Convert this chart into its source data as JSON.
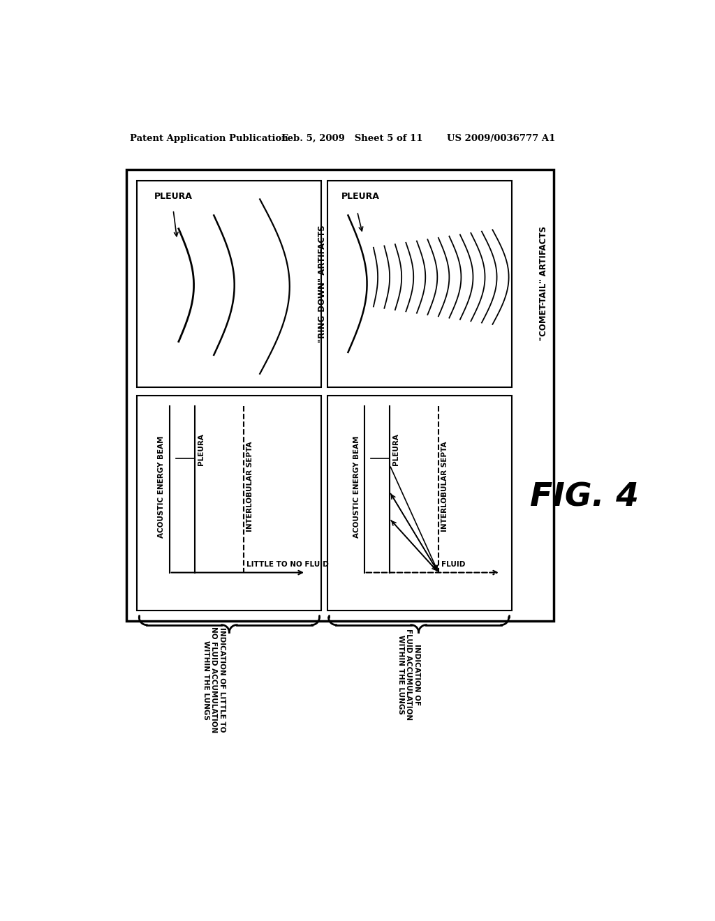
{
  "bg_color": "#ffffff",
  "header_left": "Patent Application Publication",
  "header_mid": "Feb. 5, 2009   Sheet 5 of 11",
  "header_right": "US 2009/0036777 A1",
  "fig_label": "FIG. 4",
  "bottom_left_text": "INDICATION OF LITTLE TO\nNO FLUID ACCUMULATION\nWITHIN THE LUNGS",
  "bottom_right_text": "INDICATION OF\nFLUID ACCUMULATION\nWITHIN THE LUNGS",
  "ring_down_label": "\"RING-DOWN\" ARTIFACTS",
  "comet_tail_label": "\"COMET-TAIL\" ARTIFACTS",
  "tl_pleura": "PLEURA",
  "tr_pleura": "PLEURA",
  "bl_label0": "ACOUSTIC ENERGY BEAM",
  "bl_label1": "PLEURA",
  "bl_label2": "INTERLOBULAR SEPTA",
  "bl_label3": "LITTLE TO NO FLUID",
  "br_label0": "ACOUSTIC ENERGY BEAM",
  "br_label1": "PLEURA",
  "br_label2": "INTERLOBULAR SEPTA",
  "br_label3": "FLUID"
}
